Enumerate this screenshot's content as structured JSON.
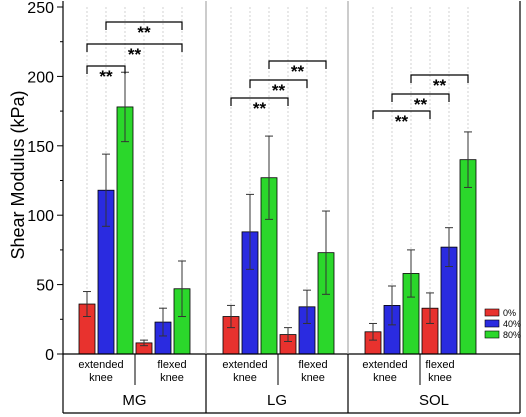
{
  "chart_data": {
    "type": "bar",
    "title": "",
    "ylabel": "Shear Modulus (kPa)",
    "ylim": [
      0,
      250
    ],
    "yticks": [
      0,
      50,
      100,
      150,
      200,
      250
    ],
    "grid": "vertical dotted lines",
    "legend_position": "right",
    "groups": [
      "MG",
      "LG",
      "SOL"
    ],
    "conditions": [
      "extended knee",
      "flexed knee"
    ],
    "condition_labels": [
      [
        "extended",
        "knee"
      ],
      [
        "flexed",
        "knee"
      ]
    ],
    "series": [
      {
        "name": "0%",
        "color": "#e8322e",
        "values": [
          [
            36,
            8
          ],
          [
            27,
            14
          ],
          [
            16,
            33
          ]
        ],
        "errors": [
          [
            9,
            2
          ],
          [
            8,
            5
          ],
          [
            6,
            11
          ]
        ]
      },
      {
        "name": "40%",
        "color": "#2a2be0",
        "values": [
          [
            118,
            23
          ],
          [
            88,
            34
          ],
          [
            35,
            77
          ]
        ],
        "errors": [
          [
            26,
            10
          ],
          [
            27,
            12
          ],
          [
            14,
            14
          ]
        ]
      },
      {
        "name": "80%",
        "color": "#2bd72b",
        "values": [
          [
            178,
            47
          ],
          [
            127,
            73
          ],
          [
            58,
            140
          ]
        ],
        "errors": [
          [
            25,
            20
          ],
          [
            30,
            30
          ],
          [
            17,
            20
          ]
        ]
      }
    ],
    "significance": [
      {
        "group": "MG",
        "from": 0,
        "to": 2,
        "label": "**"
      },
      {
        "group": "MG",
        "from": 0,
        "to": 5,
        "label": "**"
      },
      {
        "group": "MG",
        "from": 1,
        "to": 5,
        "label": "**"
      },
      {
        "group": "LG",
        "from": 0,
        "to": 3,
        "label": "**"
      },
      {
        "group": "LG",
        "from": 1,
        "to": 4,
        "label": "**"
      },
      {
        "group": "LG",
        "from": 2,
        "to": 5,
        "label": "**"
      },
      {
        "group": "SOL",
        "from": 0,
        "to": 3,
        "label": "**"
      },
      {
        "group": "SOL",
        "from": 1,
        "to": 4,
        "label": "**"
      },
      {
        "group": "SOL",
        "from": 2,
        "to": 5,
        "label": "**"
      }
    ]
  }
}
